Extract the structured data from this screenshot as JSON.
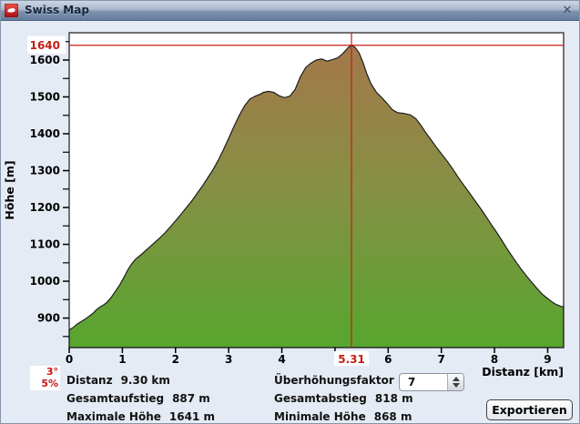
{
  "window": {
    "title": "Swiss Map",
    "close_glyph": "✕"
  },
  "chart_data": {
    "type": "area",
    "title": "",
    "xlabel": "Distanz [km]",
    "ylabel": "Höhe [m]",
    "xlim": [
      0,
      9.3
    ],
    "ylim": [
      820,
      1674
    ],
    "grid": false,
    "x_ticks": [
      0,
      1,
      2,
      3,
      4,
      5,
      6,
      7,
      8,
      9
    ],
    "x_tick_labels": [
      "0",
      "1",
      "2",
      "3",
      "4",
      "",
      "6",
      "7",
      "8",
      "9"
    ],
    "y_ticks": [
      900,
      1000,
      1100,
      1200,
      1300,
      1400,
      1500,
      1600
    ],
    "y_tick_labels": [
      "900",
      "1000",
      "1100",
      "1200",
      "1300",
      "1400",
      "1500",
      "1600"
    ],
    "y_minor": {
      "start": 850,
      "end": 1650,
      "step": 50
    },
    "crosshair": {
      "x": 5.31,
      "x_label": "5.31",
      "y": 1640,
      "y_label": "1640",
      "color": "#c41e14"
    },
    "colors": {
      "top": "#a6764a",
      "mid": "#878f45",
      "bottom": "#57a62e",
      "line": "#1d1d1d",
      "plot_bg": "#ffffff",
      "axis": "#000000"
    },
    "profile": [
      [
        0,
        868
      ],
      [
        0.08,
        875
      ],
      [
        0.15,
        884
      ],
      [
        0.22,
        890
      ],
      [
        0.3,
        897
      ],
      [
        0.38,
        906
      ],
      [
        0.45,
        913
      ],
      [
        0.5,
        921
      ],
      [
        0.58,
        930
      ],
      [
        0.65,
        936
      ],
      [
        0.72,
        944
      ],
      [
        0.8,
        958
      ],
      [
        0.88,
        975
      ],
      [
        0.95,
        990
      ],
      [
        1.02,
        1008
      ],
      [
        1.1,
        1030
      ],
      [
        1.18,
        1048
      ],
      [
        1.25,
        1060
      ],
      [
        1.32,
        1068
      ],
      [
        1.4,
        1078
      ],
      [
        1.5,
        1091
      ],
      [
        1.6,
        1104
      ],
      [
        1.7,
        1117
      ],
      [
        1.8,
        1131
      ],
      [
        1.9,
        1147
      ],
      [
        2.0,
        1164
      ],
      [
        2.1,
        1181
      ],
      [
        2.2,
        1199
      ],
      [
        2.3,
        1217
      ],
      [
        2.4,
        1237
      ],
      [
        2.5,
        1257
      ],
      [
        2.6,
        1279
      ],
      [
        2.7,
        1301
      ],
      [
        2.8,
        1327
      ],
      [
        2.9,
        1356
      ],
      [
        3.0,
        1388
      ],
      [
        3.1,
        1420
      ],
      [
        3.2,
        1450
      ],
      [
        3.3,
        1476
      ],
      [
        3.4,
        1494
      ],
      [
        3.5,
        1502
      ],
      [
        3.6,
        1508
      ],
      [
        3.65,
        1512
      ],
      [
        3.75,
        1515
      ],
      [
        3.85,
        1512
      ],
      [
        3.95,
        1503
      ],
      [
        4.05,
        1498
      ],
      [
        4.15,
        1502
      ],
      [
        4.25,
        1520
      ],
      [
        4.35,
        1555
      ],
      [
        4.45,
        1580
      ],
      [
        4.55,
        1592
      ],
      [
        4.65,
        1600
      ],
      [
        4.75,
        1603
      ],
      [
        4.85,
        1597
      ],
      [
        4.95,
        1601
      ],
      [
        5.05,
        1606
      ],
      [
        5.15,
        1618
      ],
      [
        5.25,
        1634
      ],
      [
        5.31,
        1641
      ],
      [
        5.38,
        1634
      ],
      [
        5.45,
        1620
      ],
      [
        5.52,
        1596
      ],
      [
        5.6,
        1562
      ],
      [
        5.68,
        1535
      ],
      [
        5.78,
        1512
      ],
      [
        5.88,
        1498
      ],
      [
        5.98,
        1482
      ],
      [
        6.08,
        1465
      ],
      [
        6.18,
        1457
      ],
      [
        6.3,
        1455
      ],
      [
        6.42,
        1451
      ],
      [
        6.52,
        1441
      ],
      [
        6.62,
        1422
      ],
      [
        6.72,
        1400
      ],
      [
        6.82,
        1381
      ],
      [
        6.92,
        1361
      ],
      [
        7.02,
        1342
      ],
      [
        7.12,
        1324
      ],
      [
        7.22,
        1303
      ],
      [
        7.32,
        1281
      ],
      [
        7.42,
        1261
      ],
      [
        7.52,
        1241
      ],
      [
        7.62,
        1221
      ],
      [
        7.72,
        1201
      ],
      [
        7.82,
        1180
      ],
      [
        7.92,
        1158
      ],
      [
        8.02,
        1137
      ],
      [
        8.12,
        1115
      ],
      [
        8.22,
        1092
      ],
      [
        8.32,
        1070
      ],
      [
        8.42,
        1049
      ],
      [
        8.52,
        1029
      ],
      [
        8.62,
        1011
      ],
      [
        8.72,
        994
      ],
      [
        8.82,
        977
      ],
      [
        8.9,
        965
      ],
      [
        9.0,
        953
      ],
      [
        9.08,
        944
      ],
      [
        9.16,
        937
      ],
      [
        9.24,
        932
      ],
      [
        9.3,
        930
      ]
    ]
  },
  "slope_indicator": {
    "degrees": "3°",
    "percent": "5%",
    "color": "#cc1212"
  },
  "info": {
    "col1": [
      {
        "label": "Distanz",
        "value": "9.30 km"
      },
      {
        "label": "Gesamtaufstieg",
        "value": "887 m"
      },
      {
        "label": "Maximale Höhe",
        "value": "1641 m"
      }
    ],
    "col2": [
      {
        "label": "Überhöhungsfaktor",
        "value": ""
      },
      {
        "label": "Gesamtabstieg",
        "value": "818 m"
      },
      {
        "label": "Minimale Höhe",
        "value": "868 m"
      }
    ]
  },
  "spinner": {
    "value": "7"
  },
  "export_button": {
    "label": "Exportieren"
  }
}
